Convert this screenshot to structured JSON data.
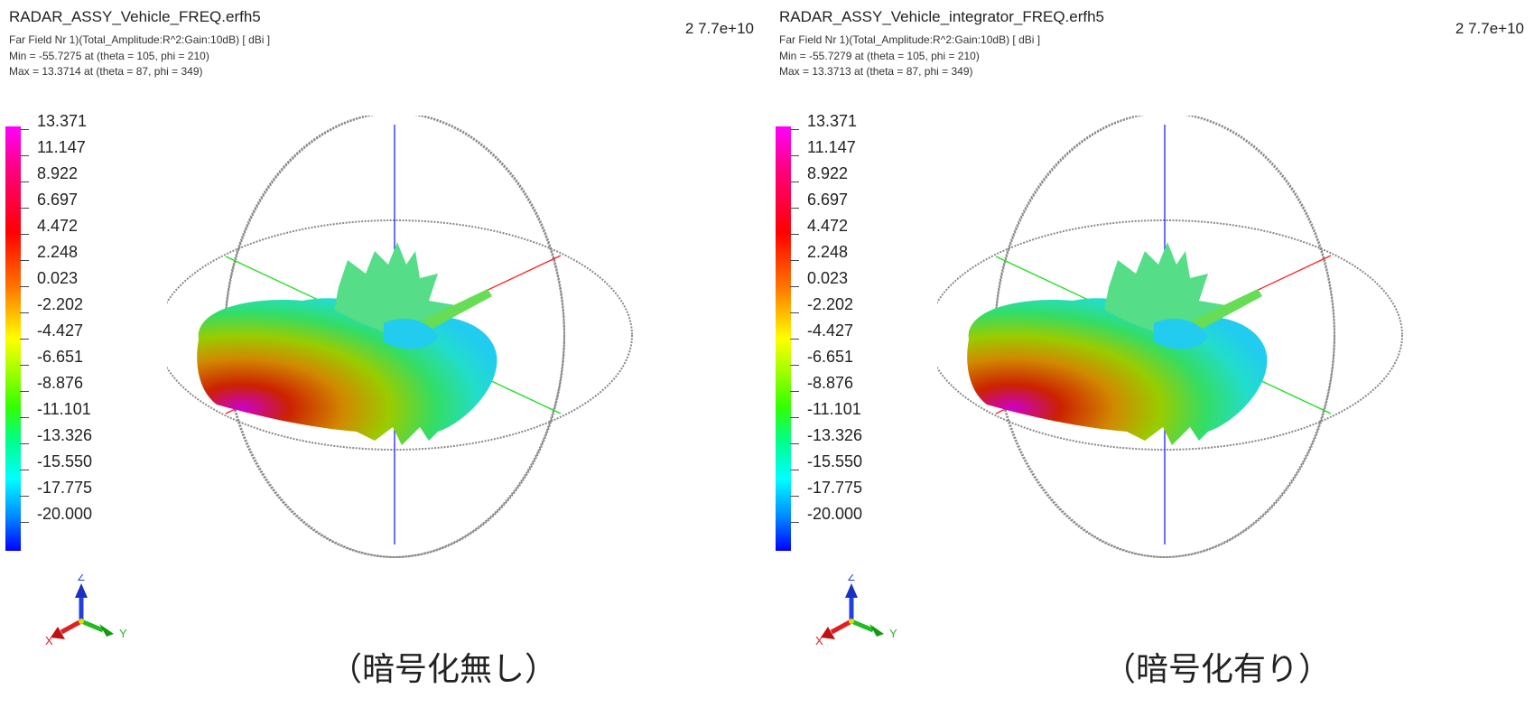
{
  "panels": [
    {
      "file_title": "RADAR_ASSY_Vehicle_FREQ.erfh5",
      "info_line1": "Far Field Nr 1)(Total_Amplitude:R^2:Gain:10dB) [ dBi ]",
      "info_line2": "Min = -55.7275 at (theta = 105, phi = 210)",
      "info_line3": "Max = 13.3714 at (theta = 87, phi = 349)",
      "frequency": "2 7.7e+10",
      "caption": "（暗号化無し）"
    },
    {
      "file_title": "RADAR_ASSY_Vehicle_integrator_FREQ.erfh5",
      "info_line1": "Far Field Nr 1)(Total_Amplitude:R^2:Gain:10dB) [ dBi ]",
      "info_line2": "Min = -55.7279 at (theta = 105, phi = 210)",
      "info_line3": "Max = 13.3713 at (theta = 87, phi = 349)",
      "frequency": "2 7.7e+10",
      "caption": "（暗号化有り）"
    }
  ],
  "colorbar": {
    "labels": [
      "13.371",
      "11.147",
      "8.922",
      "6.697",
      "4.472",
      "2.248",
      "0.023",
      "-2.202",
      "-4.427",
      "-6.651",
      "-8.876",
      "-11.101",
      "-13.326",
      "-15.550",
      "-17.775",
      "-20.000"
    ],
    "colors_top_to_bottom": [
      "#ff00ff",
      "#ff0000",
      "#ff7700",
      "#ffff00",
      "#33ff00",
      "#00ffff",
      "#0000ff"
    ]
  },
  "axes_triad": {
    "x_label": "X",
    "y_label": "Y",
    "z_label": "Z",
    "x_color": "#e02020",
    "y_color": "#22bb22",
    "z_color": "#2040e0"
  },
  "scene": {
    "sphere_wire_color": "#909090",
    "axis_x_color": "#ff2020",
    "axis_y_color": "#20dd20",
    "axis_z_color": "#2020ff"
  }
}
